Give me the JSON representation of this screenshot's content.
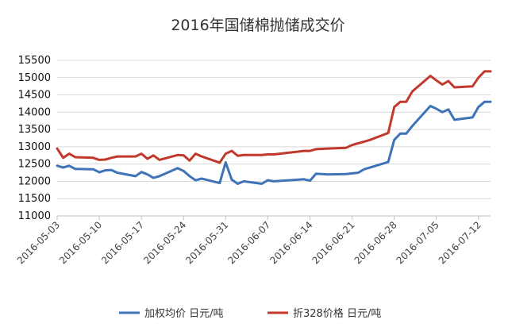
{
  "chart_data": {
    "type": "line",
    "title": "2016年国储棉抛储成交价",
    "xlabel": "",
    "ylabel": "",
    "ylim": [
      11000,
      15500
    ],
    "yticks": [
      11000,
      11500,
      12000,
      12500,
      13000,
      13500,
      14000,
      14500,
      15000,
      15500
    ],
    "xtick_labels": [
      "2016-05-03",
      "2016-05-10",
      "2016-05-17",
      "2016-05-24",
      "2016-05-31",
      "2016-06-07",
      "2016-06-14",
      "2016-06-21",
      "2016-06-28",
      "2016-07-05",
      "2016-07-12"
    ],
    "grid": "horizontal",
    "legend_position": "bottom",
    "x": [
      "2016-05-03",
      "2016-05-04",
      "2016-05-05",
      "2016-05-06",
      "2016-05-09",
      "2016-05-10",
      "2016-05-11",
      "2016-05-12",
      "2016-05-13",
      "2016-05-16",
      "2016-05-17",
      "2016-05-18",
      "2016-05-19",
      "2016-05-20",
      "2016-05-23",
      "2016-05-24",
      "2016-05-25",
      "2016-05-26",
      "2016-05-27",
      "2016-05-30",
      "2016-05-31",
      "2016-06-01",
      "2016-06-02",
      "2016-06-03",
      "2016-06-06",
      "2016-06-07",
      "2016-06-08",
      "2016-06-13",
      "2016-06-14",
      "2016-06-15",
      "2016-06-16",
      "2016-06-17",
      "2016-06-20",
      "2016-06-21",
      "2016-06-22",
      "2016-06-23",
      "2016-06-24",
      "2016-06-27",
      "2016-06-28",
      "2016-06-29",
      "2016-06-30",
      "2016-07-01",
      "2016-07-04",
      "2016-07-05",
      "2016-07-06",
      "2016-07-07",
      "2016-07-08",
      "2016-07-11",
      "2016-07-12",
      "2016-07-13",
      "2016-07-14"
    ],
    "series": [
      {
        "name": "加权均价 日元/吨",
        "color": "#3f73b8",
        "values": [
          12450,
          12400,
          12450,
          12360,
          12350,
          12260,
          12320,
          12330,
          12250,
          12150,
          12270,
          12200,
          12100,
          12150,
          12380,
          12300,
          12150,
          12030,
          12080,
          11950,
          12550,
          12050,
          11930,
          12000,
          11930,
          12030,
          12000,
          12060,
          12020,
          12220,
          12210,
          12200,
          12210,
          12230,
          12250,
          12350,
          12400,
          12560,
          13200,
          13380,
          13380,
          13600,
          14180,
          14100,
          14000,
          14080,
          13780,
          13850,
          14150,
          14300,
          14300
        ]
      },
      {
        "name": "折328价格 日元/吨",
        "color": "#c0392b",
        "values": [
          12950,
          12680,
          12800,
          12700,
          12680,
          12620,
          12630,
          12680,
          12720,
          12720,
          12800,
          12650,
          12750,
          12620,
          12760,
          12750,
          12600,
          12800,
          12720,
          12540,
          12800,
          12880,
          12740,
          12760,
          12760,
          12780,
          12780,
          12880,
          12880,
          12930,
          12940,
          12950,
          12970,
          13050,
          13100,
          13150,
          13200,
          13400,
          14150,
          14300,
          14300,
          14600,
          15050,
          14920,
          14800,
          14900,
          14720,
          14750,
          15000,
          15180,
          15180
        ]
      }
    ]
  }
}
